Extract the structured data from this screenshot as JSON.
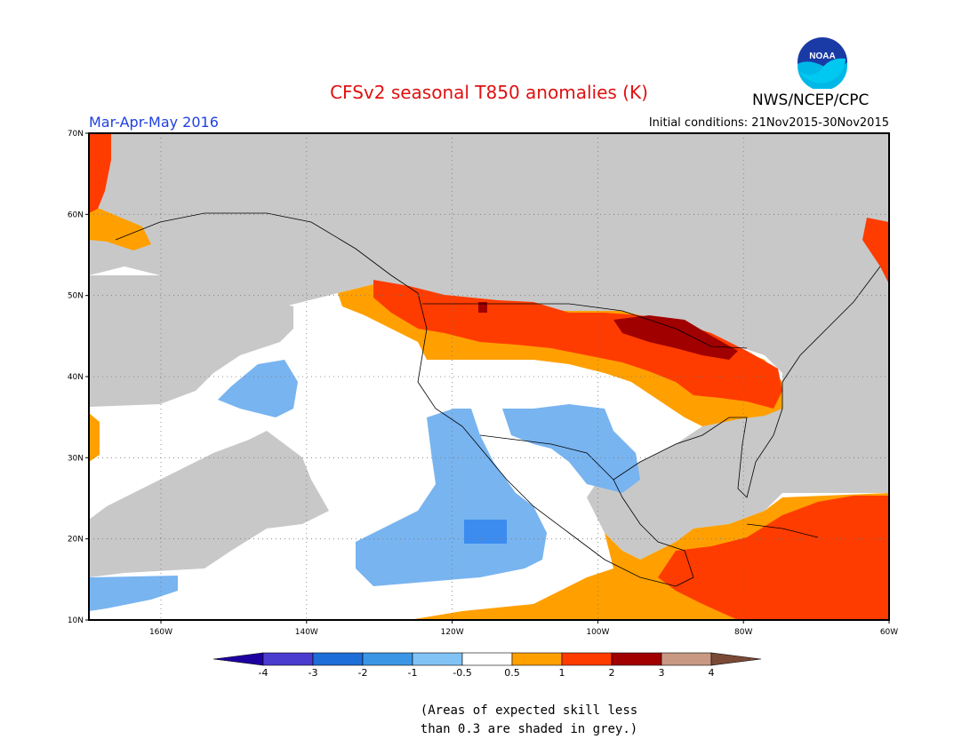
{
  "header": {
    "title": "CFSv2 seasonal T850 anomalies (K)",
    "season": "Mar-Apr-May 2016",
    "initial_conditions": "Initial conditions: 21Nov2015-30Nov2015",
    "agency": "NWS/NCEP/CPC",
    "logo_text": "NOAA"
  },
  "map": {
    "lat_labels": [
      "70N",
      "60N",
      "50N",
      "40N",
      "30N",
      "20N",
      "10N"
    ],
    "lon_labels": [
      "160W",
      "140W",
      "120W",
      "100W",
      "80W",
      "60W"
    ],
    "colors": {
      "grey": "#c8c8c8",
      "white": "#ffffff",
      "lightblue": "#78b4f0",
      "blue": "#3c8cf0",
      "orange": "#ffa000",
      "red": "#ff3c00",
      "darkred": "#a00000",
      "maroon": "#800000"
    }
  },
  "legend": {
    "labels": [
      "-4",
      "-3",
      "-2",
      "-1",
      "-0.5",
      "0.5",
      "1",
      "2",
      "3",
      "4"
    ],
    "colors": [
      "#1e00a0",
      "#4a3ccf",
      "#1e6ed8",
      "#3c96e6",
      "#82c3f5",
      "#ffffff",
      "#ffa000",
      "#ff3c00",
      "#a00000",
      "#c89882",
      "#7a4a36"
    ]
  },
  "note": {
    "line1": "(Areas of expected skill less",
    "line2": "than 0.3 are shaded in grey.)"
  }
}
